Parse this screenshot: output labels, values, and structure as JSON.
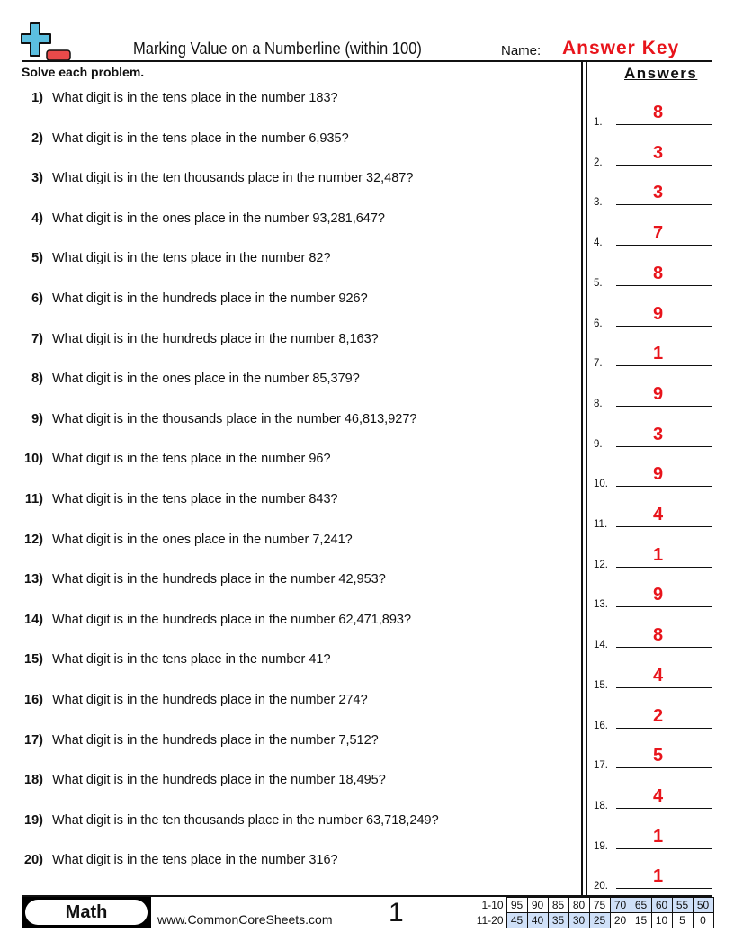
{
  "header": {
    "title": "Marking Value on a Numberline (within 100)",
    "name_label": "Name:",
    "name_value": "Answer Key"
  },
  "instructions": "Solve each problem.",
  "answers_heading": "Answers",
  "questions": [
    {
      "num": "1)",
      "text": "What digit is in the tens place in the number 183?",
      "answer": "8"
    },
    {
      "num": "2)",
      "text": "What digit is in the tens place in the number 6,935?",
      "answer": "3"
    },
    {
      "num": "3)",
      "text": "What digit is in the ten thousands place in the number 32,487?",
      "answer": "3"
    },
    {
      "num": "4)",
      "text": "What digit is in the ones place in the number 93,281,647?",
      "answer": "7"
    },
    {
      "num": "5)",
      "text": "What digit is in the tens place in the number 82?",
      "answer": "8"
    },
    {
      "num": "6)",
      "text": "What digit is in the hundreds place in the number 926?",
      "answer": "9"
    },
    {
      "num": "7)",
      "text": "What digit is in the hundreds place in the number 8,163?",
      "answer": "1"
    },
    {
      "num": "8)",
      "text": "What digit is in the ones place in the number 85,379?",
      "answer": "9"
    },
    {
      "num": "9)",
      "text": "What digit is in the thousands place in the number 46,813,927?",
      "answer": "3"
    },
    {
      "num": "10)",
      "text": "What digit is in the tens place in the number 96?",
      "answer": "9"
    },
    {
      "num": "11)",
      "text": "What digit is in the tens place in the number 843?",
      "answer": "4"
    },
    {
      "num": "12)",
      "text": "What digit is in the ones place in the number 7,241?",
      "answer": "1"
    },
    {
      "num": "13)",
      "text": "What digit is in the hundreds place in the number 42,953?",
      "answer": "9"
    },
    {
      "num": "14)",
      "text": "What digit is in the hundreds place in the number 62,471,893?",
      "answer": "8"
    },
    {
      "num": "15)",
      "text": "What digit is in the tens place in the number 41?",
      "answer": "4"
    },
    {
      "num": "16)",
      "text": "What digit is in the hundreds place in the number 274?",
      "answer": "2"
    },
    {
      "num": "17)",
      "text": "What digit is in the hundreds place in the number 7,512?",
      "answer": "5"
    },
    {
      "num": "18)",
      "text": "What digit is in the hundreds place in the number 18,495?",
      "answer": "4"
    },
    {
      "num": "19)",
      "text": "What digit is in the ten thousands place in the number 63,718,249?",
      "answer": "1"
    },
    {
      "num": "20)",
      "text": "What digit is in the tens place in the number 316?",
      "answer": "1"
    }
  ],
  "answer_numbers": [
    "1.",
    "2.",
    "3.",
    "4.",
    "5.",
    "6.",
    "7.",
    "8.",
    "9.",
    "10.",
    "11.",
    "12.",
    "13.",
    "14.",
    "15.",
    "16.",
    "17.",
    "18.",
    "19.",
    "20."
  ],
  "footer": {
    "subject": "Math",
    "site": "www.CommonCoreSheets.com",
    "page": "1",
    "score_rows": [
      {
        "label": "1-10",
        "values": [
          "95",
          "90",
          "85",
          "80",
          "75",
          "70",
          "65",
          "60",
          "55",
          "50"
        ]
      },
      {
        "label": "11-20",
        "values": [
          "45",
          "40",
          "35",
          "30",
          "25",
          "20",
          "15",
          "10",
          "5",
          "0"
        ]
      }
    ]
  },
  "colors": {
    "answer": "#e8141b",
    "highlight": "#cfe0f8",
    "logo_plus": "#5bbfe0",
    "logo_minus": "#e84a4a"
  }
}
